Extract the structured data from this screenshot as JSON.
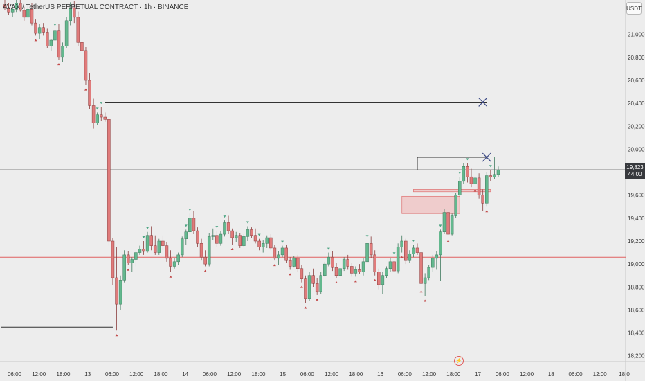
{
  "header": {
    "symbol_title": "AVAX / TetherUS PERPETUAL CONTRACT · 1h · BINANCE",
    "currency": "USDT"
  },
  "last_price": {
    "value": "19,823",
    "countdown": "44:00"
  },
  "icons": {
    "flash": "flash-icon"
  },
  "colors": {
    "up": "#63b88e",
    "down": "#e07b7b",
    "up_marker": "#4fa584",
    "down_marker": "#c24a4a",
    "key_level": "#e06060",
    "zone": "#f2a5a5",
    "level_line": "#333333",
    "cross": "#3d4a85"
  },
  "chart_data": {
    "type": "candlestick",
    "interval": "1h",
    "y_axis": {
      "ticks": [
        "21,000",
        "20,800",
        "20,600",
        "20,400",
        "20,200",
        "20,000",
        "19,600",
        "19,400",
        "19,200",
        "19,000",
        "18,800",
        "18,600",
        "18,400",
        "18,200"
      ],
      "ylim": [
        18150,
        21300
      ]
    },
    "x_axis": {
      "ticks": [
        "06:00",
        "12:00",
        "18:00",
        "13",
        "06:00",
        "12:00",
        "18:00",
        "14",
        "06:00",
        "12:00",
        "18:00",
        "15",
        "06:00",
        "12:00",
        "18:00",
        "16",
        "06:00",
        "12:00",
        "18:00",
        "17",
        "06:00",
        "12:00",
        "18",
        "06:00",
        "12:00",
        "18:0"
      ]
    },
    "candles": [
      [
        21260,
        21300,
        21210,
        21230
      ],
      [
        21230,
        21270,
        21170,
        21190
      ],
      [
        21190,
        21250,
        21150,
        21220
      ],
      [
        21220,
        21300,
        21190,
        21270
      ],
      [
        21270,
        21300,
        21200,
        21210
      ],
      [
        21210,
        21240,
        21120,
        21150
      ],
      [
        21150,
        21240,
        21130,
        21220
      ],
      [
        21220,
        21270,
        21080,
        21100
      ],
      [
        21100,
        21130,
        20990,
        21010
      ],
      [
        21010,
        21090,
        20960,
        21060
      ],
      [
        21060,
        21100,
        20990,
        21020
      ],
      [
        21020,
        21050,
        20880,
        20900
      ],
      [
        20900,
        20960,
        20860,
        20950
      ],
      [
        20950,
        21050,
        20930,
        21030
      ],
      [
        21030,
        21090,
        20780,
        20800
      ],
      [
        20800,
        20930,
        20760,
        20900
      ],
      [
        20900,
        21150,
        20880,
        21120
      ],
      [
        21120,
        21280,
        21080,
        21230
      ],
      [
        21230,
        21290,
        21100,
        21150
      ],
      [
        21150,
        21200,
        20900,
        20930
      ],
      [
        20930,
        20990,
        20800,
        20860
      ],
      [
        20860,
        20890,
        20560,
        20600
      ],
      [
        20600,
        20660,
        20350,
        20380
      ],
      [
        20380,
        20440,
        20180,
        20230
      ],
      [
        20230,
        20320,
        20210,
        20300
      ],
      [
        20300,
        20370,
        20250,
        20280
      ],
      [
        20280,
        20320,
        20240,
        20260
      ],
      [
        20260,
        20280,
        19160,
        19200
      ],
      [
        19200,
        19230,
        18820,
        18880
      ],
      [
        18880,
        19150,
        18420,
        18650
      ],
      [
        18650,
        18900,
        18600,
        18860
      ],
      [
        18860,
        19120,
        18840,
        19080
      ],
      [
        19080,
        19110,
        18990,
        19010
      ],
      [
        19010,
        19060,
        18930,
        19040
      ],
      [
        19040,
        19120,
        18980,
        19100
      ],
      [
        19100,
        19160,
        19080,
        19130
      ],
      [
        19130,
        19200,
        19080,
        19110
      ],
      [
        19110,
        19280,
        19100,
        19250
      ],
      [
        19250,
        19330,
        19120,
        19160
      ],
      [
        19160,
        19250,
        19080,
        19100
      ],
      [
        19100,
        19220,
        19080,
        19200
      ],
      [
        19200,
        19250,
        19120,
        19160
      ],
      [
        19160,
        19190,
        19020,
        19050
      ],
      [
        19050,
        19120,
        18930,
        18980
      ],
      [
        18980,
        19050,
        18960,
        19020
      ],
      [
        19020,
        19100,
        18990,
        19080
      ],
      [
        19080,
        19240,
        19060,
        19220
      ],
      [
        19220,
        19300,
        19170,
        19280
      ],
      [
        19280,
        19440,
        19260,
        19400
      ],
      [
        19400,
        19460,
        19260,
        19290
      ],
      [
        19290,
        19320,
        19150,
        19180
      ],
      [
        19180,
        19220,
        19030,
        19060
      ],
      [
        19060,
        19120,
        18980,
        19000
      ],
      [
        19000,
        19270,
        18980,
        19240
      ],
      [
        19240,
        19310,
        19210,
        19250
      ],
      [
        19250,
        19290,
        19150,
        19180
      ],
      [
        19180,
        19290,
        19160,
        19260
      ],
      [
        19260,
        19380,
        19240,
        19360
      ],
      [
        19360,
        19420,
        19260,
        19290
      ],
      [
        19290,
        19310,
        19170,
        19230
      ],
      [
        19230,
        19280,
        19190,
        19250
      ],
      [
        19250,
        19270,
        19140,
        19160
      ],
      [
        19160,
        19260,
        19150,
        19240
      ],
      [
        19240,
        19330,
        19200,
        19300
      ],
      [
        19300,
        19320,
        19230,
        19250
      ],
      [
        19250,
        19310,
        19180,
        19200
      ],
      [
        19200,
        19220,
        19120,
        19150
      ],
      [
        19150,
        19210,
        19100,
        19180
      ],
      [
        19180,
        19250,
        19140,
        19230
      ],
      [
        19230,
        19260,
        19120,
        19140
      ],
      [
        19140,
        19170,
        19030,
        19050
      ],
      [
        19050,
        19110,
        18990,
        19080
      ],
      [
        19080,
        19160,
        19060,
        19140
      ],
      [
        19140,
        19170,
        19010,
        19030
      ],
      [
        19030,
        19060,
        18950,
        18980
      ],
      [
        18980,
        19070,
        18970,
        19050
      ],
      [
        19050,
        19080,
        18930,
        18960
      ],
      [
        18960,
        18990,
        18840,
        18870
      ],
      [
        18870,
        18900,
        18660,
        18700
      ],
      [
        18700,
        18930,
        18680,
        18900
      ],
      [
        18900,
        18960,
        18800,
        18830
      ],
      [
        18830,
        18880,
        18730,
        18760
      ],
      [
        18760,
        18930,
        18740,
        18900
      ],
      [
        18900,
        19020,
        18890,
        19000
      ],
      [
        19000,
        19100,
        18980,
        19060
      ],
      [
        19060,
        19110,
        18940,
        18970
      ],
      [
        18970,
        19010,
        18880,
        18900
      ],
      [
        18900,
        18990,
        18890,
        18960
      ],
      [
        18960,
        19060,
        18940,
        19040
      ],
      [
        19040,
        19080,
        18950,
        18980
      ],
      [
        18980,
        19010,
        18890,
        18920
      ],
      [
        18920,
        18980,
        18890,
        18950
      ],
      [
        18950,
        19000,
        18910,
        18930
      ],
      [
        18930,
        19050,
        18900,
        19020
      ],
      [
        19020,
        19210,
        19000,
        19180
      ],
      [
        19180,
        19240,
        19050,
        19080
      ],
      [
        19080,
        19120,
        18900,
        18930
      ],
      [
        18930,
        18960,
        18780,
        18820
      ],
      [
        18820,
        18930,
        18740,
        18900
      ],
      [
        18900,
        18980,
        18880,
        18960
      ],
      [
        18960,
        19050,
        18930,
        19020
      ],
      [
        19020,
        19060,
        18910,
        18940
      ],
      [
        18940,
        19180,
        18920,
        19150
      ],
      [
        19150,
        19250,
        19100,
        19200
      ],
      [
        19200,
        19220,
        19000,
        19030
      ],
      [
        19030,
        19120,
        19010,
        19090
      ],
      [
        19090,
        19170,
        19060,
        19140
      ],
      [
        19140,
        19180,
        19080,
        19100
      ],
      [
        19100,
        19130,
        18800,
        18830
      ],
      [
        18830,
        18920,
        18720,
        18880
      ],
      [
        18880,
        18990,
        18860,
        18970
      ],
      [
        18970,
        19080,
        18930,
        19050
      ],
      [
        19050,
        19110,
        18950,
        19080
      ],
      [
        19080,
        19300,
        18850,
        19280
      ],
      [
        19280,
        19480,
        19260,
        19450
      ],
      [
        19450,
        19500,
        19240,
        19260
      ],
      [
        19260,
        19440,
        19250,
        19420
      ],
      [
        19420,
        19620,
        19400,
        19600
      ],
      [
        19600,
        19760,
        19580,
        19720
      ],
      [
        19720,
        19880,
        19700,
        19850
      ],
      [
        19850,
        19880,
        19710,
        19760
      ],
      [
        19760,
        19830,
        19670,
        19700
      ],
      [
        19700,
        19780,
        19680,
        19750
      ],
      [
        19750,
        19790,
        19570,
        19600
      ],
      [
        19600,
        19650,
        19460,
        19530
      ],
      [
        19530,
        19800,
        19500,
        19770
      ],
      [
        19770,
        19820,
        19720,
        19760
      ],
      [
        19760,
        19930,
        19740,
        19780
      ],
      [
        19780,
        19850,
        19760,
        19820
      ]
    ],
    "markers": [
      {
        "i": 0,
        "type": "high"
      },
      {
        "i": 4,
        "type": "high"
      },
      {
        "i": 8,
        "type": "low"
      },
      {
        "i": 13,
        "type": "high"
      },
      {
        "i": 14,
        "type": "low"
      },
      {
        "i": 17,
        "type": "high"
      },
      {
        "i": 21,
        "type": "low"
      },
      {
        "i": 24,
        "type": "high"
      },
      {
        "i": 25,
        "type": "high"
      },
      {
        "i": 29,
        "type": "low"
      },
      {
        "i": 32,
        "type": "low"
      },
      {
        "i": 36,
        "type": "high"
      },
      {
        "i": 37,
        "type": "high"
      },
      {
        "i": 43,
        "type": "low"
      },
      {
        "i": 47,
        "type": "high"
      },
      {
        "i": 48,
        "type": "high"
      },
      {
        "i": 52,
        "type": "low"
      },
      {
        "i": 55,
        "type": "high"
      },
      {
        "i": 57,
        "type": "high"
      },
      {
        "i": 59,
        "type": "low"
      },
      {
        "i": 63,
        "type": "high"
      },
      {
        "i": 66,
        "type": "high"
      },
      {
        "i": 70,
        "type": "low"
      },
      {
        "i": 72,
        "type": "high"
      },
      {
        "i": 74,
        "type": "low"
      },
      {
        "i": 77,
        "type": "low"
      },
      {
        "i": 78,
        "type": "low"
      },
      {
        "i": 81,
        "type": "low"
      },
      {
        "i": 84,
        "type": "high"
      },
      {
        "i": 86,
        "type": "low"
      },
      {
        "i": 91,
        "type": "low"
      },
      {
        "i": 94,
        "type": "high"
      },
      {
        "i": 96,
        "type": "low"
      },
      {
        "i": 101,
        "type": "high"
      },
      {
        "i": 103,
        "type": "low"
      },
      {
        "i": 106,
        "type": "high"
      },
      {
        "i": 108,
        "type": "low"
      },
      {
        "i": 109,
        "type": "low"
      },
      {
        "i": 113,
        "type": "high"
      },
      {
        "i": 115,
        "type": "low"
      },
      {
        "i": 118,
        "type": "high"
      },
      {
        "i": 120,
        "type": "high"
      },
      {
        "i": 122,
        "type": "low"
      },
      {
        "i": 125,
        "type": "low"
      },
      {
        "i": 126,
        "type": "high"
      }
    ],
    "annotations": {
      "key_level": 19060,
      "last_price": 19823,
      "lines": [
        {
          "price": 18450,
          "from": -1,
          "to": 28
        },
        {
          "price": 20410,
          "from": 26,
          "to": 125
        },
        {
          "price": 19930,
          "from": 107,
          "to": 125
        }
      ],
      "crosses": [
        {
          "price": 20410,
          "at": 124
        },
        {
          "price": 19930,
          "at": 125
        }
      ],
      "zones": [
        {
          "top": 19650,
          "bottom": 19630,
          "from": 106,
          "to": 126
        },
        {
          "top": 19590,
          "bottom": 19440,
          "from": 103,
          "to": 118
        }
      ]
    }
  }
}
